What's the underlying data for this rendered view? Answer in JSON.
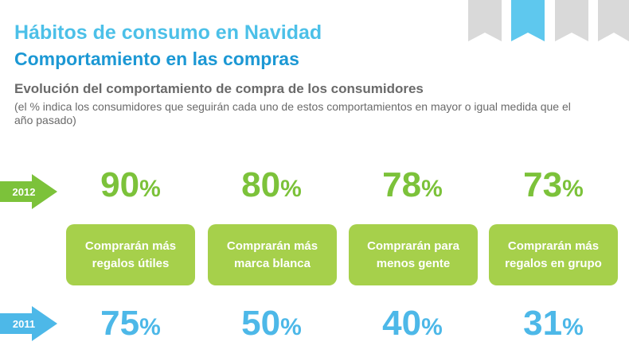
{
  "header": {
    "title": "Hábitos de consumo en Navidad",
    "subtitle": "Comportamiento en las compras"
  },
  "section": {
    "heading": "Evolución del comportamiento de compra de los consumidores",
    "note": "(el % indica los consumidores que seguirán cada uno de estos comportamientos en mayor o igual medida que el año pasado)"
  },
  "years": {
    "current": {
      "label": "2012",
      "color": "#7cc23a"
    },
    "previous": {
      "label": "2011",
      "color": "#4db8e8"
    }
  },
  "percent_symbol": "%",
  "behaviors": [
    {
      "label": "Comprarán más regalos útiles",
      "pct_2012": "90",
      "pct_2011": "75"
    },
    {
      "label": "Comprarán más marca blanca",
      "pct_2012": "80",
      "pct_2011": "50"
    },
    {
      "label": "Comprarán para menos gente",
      "pct_2012": "78",
      "pct_2011": "40"
    },
    {
      "label": "Comprarán más regalos en grupo",
      "pct_2012": "73",
      "pct_2011": "31"
    }
  ],
  "colors": {
    "card": "#a6d04b",
    "ribbon": "#d9d9d9",
    "ribbon_active": "#5ec8ee"
  }
}
